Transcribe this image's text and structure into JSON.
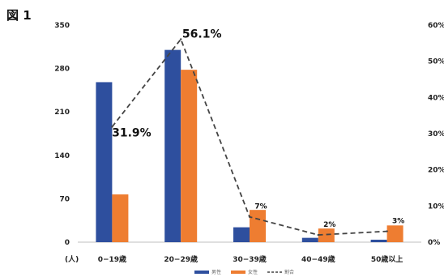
{
  "figure_label": "図 1",
  "chart_data": {
    "type": "bar",
    "categories": [
      "0−19歳",
      "20−29歳",
      "30−39歳",
      "40−49歳",
      "50歳以上"
    ],
    "series": [
      {
        "name": "男性",
        "kind": "bar",
        "axis": "left",
        "color": "#2e4f9e",
        "values": [
          258,
          310,
          24,
          7,
          4
        ]
      },
      {
        "name": "女性",
        "kind": "bar",
        "axis": "left",
        "color": "#ee7d31",
        "values": [
          77,
          278,
          52,
          22,
          27
        ]
      },
      {
        "name": "割合",
        "kind": "line",
        "style": "dashed",
        "axis": "right",
        "color": "#444444",
        "values": [
          31.9,
          56.1,
          7,
          2,
          3
        ]
      }
    ],
    "data_labels": [
      "31.9%",
      "56.1%",
      "7%",
      "2%",
      "3%"
    ],
    "ylim_left": [
      0,
      350
    ],
    "yticks_left": [
      0,
      70,
      140,
      210,
      280,
      350
    ],
    "ylim_right": [
      0,
      60
    ],
    "yticks_right_labels": [
      "0%",
      "10%",
      "20%",
      "30%",
      "40%",
      "50%",
      "60%"
    ],
    "unit_label": "(人)",
    "legend": [
      "男性",
      "女性",
      "割合"
    ],
    "legend_position": "bottom",
    "grid": false
  }
}
